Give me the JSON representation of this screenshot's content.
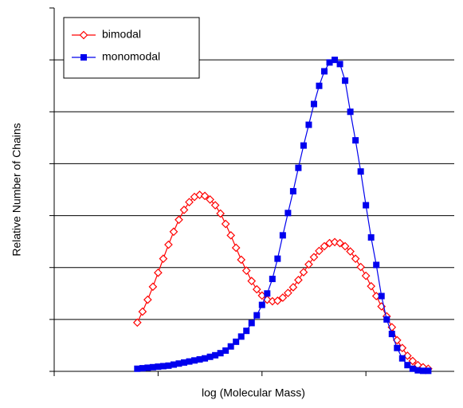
{
  "chart_data": {
    "type": "line",
    "x_label": "log (Molecular Mass)",
    "y_label": "Relative Number of Chains",
    "xlim": [
      0,
      3.85
    ],
    "xticks": [
      0,
      1,
      2,
      3
    ],
    "ylim": [
      0,
      7
    ],
    "yticks": [
      0,
      1,
      2,
      3,
      4,
      5,
      6,
      7
    ],
    "grid": true,
    "legend": "upper left",
    "x": [
      0.8,
      0.85,
      0.9,
      0.95,
      1.0,
      1.05,
      1.1,
      1.15,
      1.2,
      1.25,
      1.3,
      1.35,
      1.4,
      1.45,
      1.5,
      1.55,
      1.6,
      1.65,
      1.7,
      1.75,
      1.8,
      1.85,
      1.9,
      1.95,
      2.0,
      2.05,
      2.1,
      2.15,
      2.2,
      2.25,
      2.3,
      2.35,
      2.4,
      2.45,
      2.5,
      2.55,
      2.6,
      2.65,
      2.7,
      2.75,
      2.8,
      2.85,
      2.9,
      2.95,
      3.0,
      3.05,
      3.1,
      3.15,
      3.2,
      3.25,
      3.3,
      3.35,
      3.4,
      3.45,
      3.5,
      3.55,
      3.6
    ],
    "series": [
      {
        "name": "bimodal",
        "color": "#ff0000",
        "marker": "open-diamond",
        "values": [
          0.94,
          1.15,
          1.38,
          1.63,
          1.9,
          2.17,
          2.44,
          2.69,
          2.92,
          3.11,
          3.26,
          3.36,
          3.4,
          3.38,
          3.31,
          3.2,
          3.04,
          2.84,
          2.62,
          2.38,
          2.15,
          1.94,
          1.74,
          1.58,
          1.46,
          1.38,
          1.35,
          1.36,
          1.42,
          1.51,
          1.62,
          1.76,
          1.91,
          2.06,
          2.2,
          2.32,
          2.41,
          2.47,
          2.49,
          2.47,
          2.41,
          2.31,
          2.17,
          2.01,
          1.84,
          1.64,
          1.45,
          1.25,
          1.06,
          0.85,
          0.6,
          0.45,
          0.3,
          0.2,
          0.12,
          0.08,
          0.05
        ]
      },
      {
        "name": "monomodal",
        "color": "#0000ee",
        "marker": "filled-square",
        "values": [
          0.05,
          0.06,
          0.07,
          0.08,
          0.09,
          0.1,
          0.11,
          0.13,
          0.15,
          0.17,
          0.19,
          0.21,
          0.23,
          0.25,
          0.28,
          0.31,
          0.35,
          0.4,
          0.48,
          0.57,
          0.67,
          0.78,
          0.93,
          1.08,
          1.28,
          1.5,
          1.78,
          2.17,
          2.62,
          3.05,
          3.47,
          3.92,
          4.35,
          4.75,
          5.15,
          5.5,
          5.78,
          5.95,
          6.0,
          5.92,
          5.6,
          5.0,
          4.45,
          3.85,
          3.2,
          2.58,
          2.05,
          1.45,
          1.0,
          0.72,
          0.45,
          0.25,
          0.12,
          0.05,
          0.02,
          0.01,
          0.01
        ]
      }
    ]
  }
}
